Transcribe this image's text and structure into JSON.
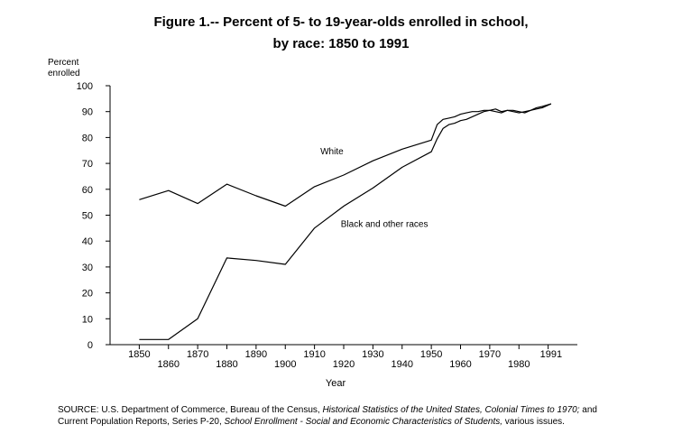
{
  "chart_data": {
    "type": "line",
    "title": "Figure 1.-- Percent of 5- to 19-year-olds enrolled in school,",
    "subtitle": "by race: 1850 to 1991",
    "ylabel_line1": "Percent",
    "ylabel_line2": "enrolled",
    "xlabel": "Year",
    "ylim": [
      0,
      100
    ],
    "xlim": [
      1840,
      2000
    ],
    "yticks": [
      0,
      10,
      20,
      30,
      40,
      50,
      60,
      70,
      80,
      90,
      100
    ],
    "xticks_upper": [
      1850,
      1870,
      1890,
      1910,
      1930,
      1950,
      1970,
      1991
    ],
    "xticks_lower": [
      1860,
      1880,
      1900,
      1920,
      1940,
      1960,
      1980
    ],
    "grid": false,
    "series": [
      {
        "name": "White",
        "x": [
          1850,
          1860,
          1870,
          1880,
          1890,
          1900,
          1910,
          1920,
          1930,
          1940,
          1950,
          1952,
          1954,
          1956,
          1958,
          1960,
          1962,
          1964,
          1966,
          1968,
          1970,
          1972,
          1974,
          1976,
          1978,
          1980,
          1982,
          1984,
          1986,
          1988,
          1991
        ],
        "values": [
          56,
          59.5,
          54.5,
          62,
          57.5,
          53.5,
          61,
          65.5,
          71,
          75.5,
          79,
          85,
          87,
          87.5,
          88,
          89,
          89.5,
          90,
          90,
          90.5,
          90.5,
          91,
          90,
          90.5,
          90,
          89.5,
          90,
          90.5,
          91.5,
          92,
          93
        ]
      },
      {
        "name": "Black and other races",
        "x": [
          1850,
          1860,
          1870,
          1880,
          1890,
          1900,
          1910,
          1920,
          1930,
          1940,
          1950,
          1952,
          1954,
          1956,
          1958,
          1960,
          1962,
          1964,
          1966,
          1968,
          1970,
          1972,
          1974,
          1976,
          1978,
          1980,
          1982,
          1984,
          1986,
          1988,
          1991
        ],
        "values": [
          2,
          2,
          10,
          33.5,
          32.5,
          31,
          45,
          53.5,
          60.5,
          68.5,
          74.5,
          79.5,
          83.5,
          85,
          85.5,
          86.5,
          87,
          88,
          89,
          90,
          90.5,
          90,
          89.5,
          90.5,
          90.5,
          90,
          89.5,
          90.5,
          91,
          91.5,
          93
        ]
      }
    ]
  },
  "source": {
    "line1_a": "SOURCE:  U.S. Department of Commerce, Bureau of the Census, ",
    "line1_b": "Historical Statistics of the United States, Colonial Times to 1970;",
    "line1_c": "  and",
    "line2_a": "Current Population Reports, Series P-20, ",
    "line2_b": "School Enrollment - Social and Economic Characteristics of Students,",
    "line2_c": " various issues."
  }
}
